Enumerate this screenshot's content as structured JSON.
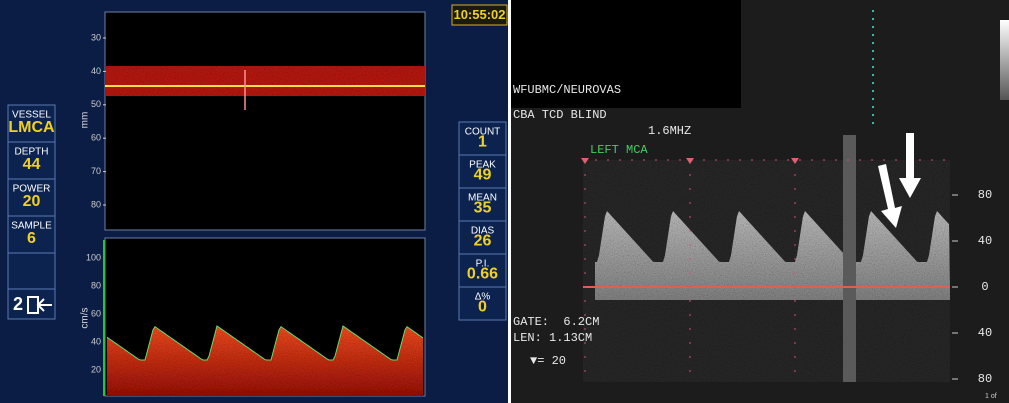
{
  "clock": "10:55:02",
  "left_sidebar": [
    {
      "label": "VESSEL",
      "value": "LMCA"
    },
    {
      "label": "DEPTH",
      "value": "44"
    },
    {
      "label": "POWER",
      "value": "20"
    },
    {
      "label": "SAMPLE",
      "value": "6"
    }
  ],
  "probe_icon": "2",
  "right_sidebar": [
    {
      "label": "COUNT",
      "value": "1"
    },
    {
      "label": "PEAK",
      "value": "49"
    },
    {
      "label": "MEAN",
      "value": "35"
    },
    {
      "label": "DIAS",
      "value": "26"
    },
    {
      "label": "P.I.",
      "value": "0.66"
    },
    {
      "label": "Δ%",
      "value": "0"
    }
  ],
  "depth_axis": {
    "label": "mm",
    "ticks": [
      "30",
      "40",
      "50",
      "60",
      "70",
      "80"
    ]
  },
  "velocity_axis": {
    "label": "cm/s",
    "ticks": [
      "100",
      "80",
      "60",
      "40",
      "20"
    ]
  },
  "right_panel": {
    "header": [
      "WFUBMC/NEUROVAS",
      "CBA TCD BLIND"
    ],
    "frequency": "1.6MHZ",
    "vessel": "LEFT MCA",
    "gate": "GATE:  6.2CM",
    "len": "LEN: 1.13CM",
    "scale": "▼= 20",
    "axis_ticks": [
      "80",
      "40",
      "0",
      "40",
      "80"
    ],
    "page": "1 of"
  }
}
